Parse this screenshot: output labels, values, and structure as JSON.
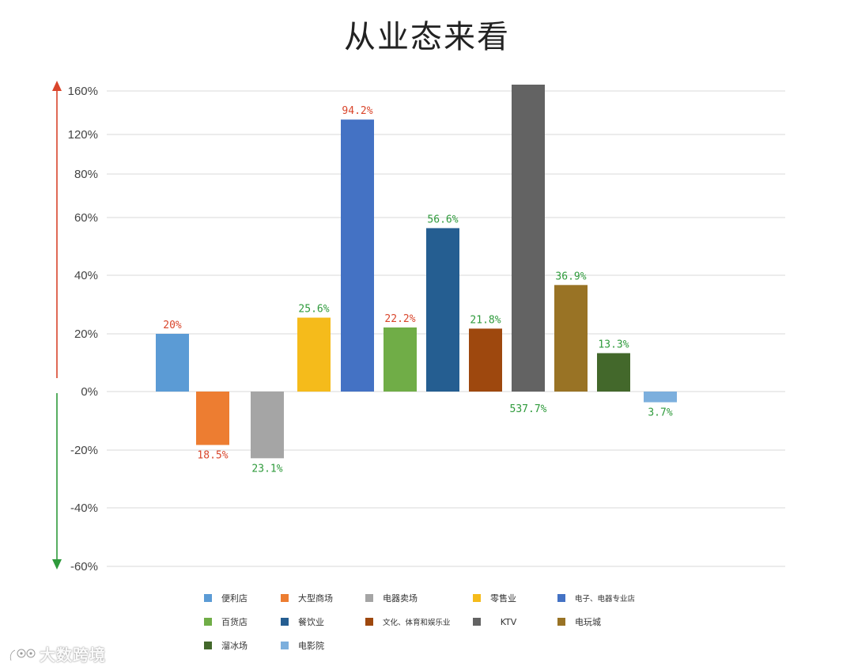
{
  "chart_data": {
    "type": "bar",
    "title": "从业态来看",
    "y_ticks": [
      "-60%",
      "-40%",
      "-20%",
      "0%",
      "20%",
      "40%",
      "60%",
      "80%",
      "120%",
      "160%"
    ],
    "categories": [
      "便利店",
      "大型商场",
      "电器卖场",
      "零售业",
      "电子、电器专业店",
      "百货店",
      "餐饮业",
      "文化、体育和娱乐业",
      "KTV",
      "电玩城",
      "溜冰场",
      "电影院"
    ],
    "values": [
      20,
      -18.5,
      -23.1,
      25.6,
      94.2,
      22.2,
      56.6,
      21.8,
      537.7,
      36.9,
      13.3,
      -3.7
    ],
    "data_labels": [
      "20%",
      "18.5%",
      "23.1%",
      "25.6%",
      "94.2%",
      "22.2%",
      "56.6%",
      "21.8%",
      "537.7%",
      "36.9%",
      "13.3%",
      "3.7%"
    ],
    "colors": [
      "#5b9bd5",
      "#ed7d31",
      "#a5a5a5",
      "#f5bb1b",
      "#4472c4",
      "#70ad47",
      "#255e91",
      "#9e480e",
      "#636363",
      "#997325",
      "#43682b",
      "#7cafdd"
    ],
    "label_colors": [
      "#d9452b",
      "#d9452b",
      "#2e9a3b",
      "#2e9a3b",
      "#d9452b",
      "#d9452b",
      "#2e9a3b",
      "#2e9a3b",
      "#2e9a3b",
      "#2e9a3b",
      "#2e9a3b",
      "#2e9a3b"
    ],
    "increase_arrow_color": "#d9452b",
    "decrease_arrow_color": "#2e9a3b",
    "grid": true,
    "legend_position": "bottom"
  },
  "watermark": {
    "text": "大数跨境"
  }
}
